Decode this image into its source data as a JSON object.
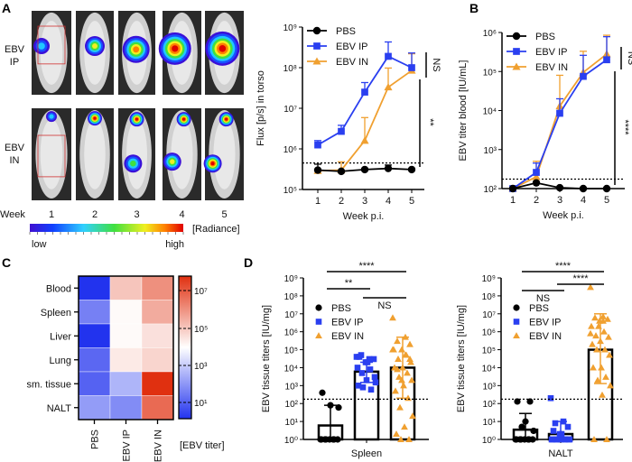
{
  "panel_labels": {
    "a": "A",
    "b": "B",
    "c": "C",
    "d": "D"
  },
  "colors": {
    "PBS": "#000000",
    "EBV IP": "#2a3ff0",
    "EBV IN": "#f0a030",
    "heat_low": "#2233ee",
    "heat_high": "#e03010"
  },
  "imaging": {
    "rows": [
      {
        "line1": "EBV",
        "line2": "IP"
      },
      {
        "line1": "EBV",
        "line2": "IN"
      }
    ],
    "week_label": "Week",
    "weeks": [
      "1",
      "2",
      "3",
      "4",
      "5"
    ],
    "colorbar_label": "[Radiance]",
    "low": "low",
    "high": "high"
  },
  "chart_data": [
    {
      "panel": "A",
      "type": "line",
      "scale": "log",
      "xlabel": "Week p.i.",
      "ylabel": "Flux [p/s] in torso",
      "x": [
        1,
        2,
        3,
        4,
        5
      ],
      "ylim": [
        100000,
        1000000000
      ],
      "ytick_labels": [
        "10⁵",
        "10⁶",
        "10⁷",
        "10⁸",
        "10⁹"
      ],
      "detection_limit": 450000,
      "series": [
        {
          "name": "PBS",
          "values": [
            300000,
            280000,
            310000,
            330000,
            310000
          ],
          "error_upper": [
            420000,
            290000,
            330000,
            400000,
            330000
          ]
        },
        {
          "name": "EBV IP",
          "values": [
            1250000,
            2700000,
            25000000,
            190000000,
            100000000
          ],
          "error_upper": [
            1600000,
            3800000,
            43000000,
            430000000,
            230000000
          ]
        },
        {
          "name": "EBV IN",
          "values": [
            290000,
            300000,
            1600000,
            33000000,
            85000000
          ],
          "error_upper": [
            310000,
            480000,
            5900000,
            98000000,
            220000000
          ]
        }
      ],
      "annotations": [
        {
          "label": "NS",
          "between": [
            "EBV IP",
            "EBV IN"
          ]
        },
        {
          "label": "**",
          "between": [
            "EBV IN",
            "PBS"
          ]
        }
      ]
    },
    {
      "panel": "B",
      "type": "line",
      "scale": "log",
      "xlabel": "Week p.i.",
      "ylabel": "EBV titer blood [IU/mL]",
      "x": [
        1,
        2,
        3,
        4,
        5
      ],
      "ylim": [
        100,
        1000000
      ],
      "ytick_labels": [
        "10²",
        "10³",
        "10⁴",
        "10⁵",
        "10⁶"
      ],
      "detection_limit": 175,
      "series": [
        {
          "name": "PBS",
          "values": [
            100,
            140,
            105,
            100,
            100
          ],
          "error_upper": [
            100,
            150,
            105,
            100,
            100
          ]
        },
        {
          "name": "EBV IP",
          "values": [
            100,
            260,
            8500,
            75000,
            200000
          ],
          "error_upper": [
            100,
            450,
            20000,
            260000,
            780000
          ]
        },
        {
          "name": "EBV IN",
          "values": [
            100,
            200,
            13000,
            95000,
            280000
          ],
          "error_upper": [
            100,
            500,
            80000,
            330000,
            850000
          ]
        }
      ],
      "annotations": [
        {
          "label": "NS",
          "between": [
            "EBV IP",
            "EBV IN"
          ]
        },
        {
          "label": "****",
          "between": [
            "EBV IN",
            "PBS"
          ]
        }
      ]
    },
    {
      "panel": "C",
      "type": "heatmap",
      "scale": "log",
      "rows": [
        "Blood",
        "Spleen",
        "Liver",
        "Lung",
        "sm. tissue",
        "NALT"
      ],
      "columns": [
        "PBS",
        "EBV IP",
        "EBV IN"
      ],
      "values": [
        [
          1,
          100000,
          1000000
        ],
        [
          30,
          10000,
          300000
        ],
        [
          1,
          10000,
          30000
        ],
        [
          10,
          20000,
          50000
        ],
        [
          8,
          300,
          100000000
        ],
        [
          100,
          50,
          5000000
        ]
      ],
      "colorbar_ticks": [
        "10⁷",
        "10⁵",
        "10³",
        "10¹"
      ],
      "colorbar_label": "[EBV titer]"
    },
    {
      "panel": "D",
      "type": "bar+scatter",
      "scale": "log",
      "xlabel": "Spleen",
      "ylabel": "EBV tissue titers [IU/mg]",
      "ylim": [
        1,
        1000000000
      ],
      "ytick_labels": [
        "10⁰",
        "10¹",
        "10²",
        "10³",
        "10⁴",
        "10⁵",
        "10⁶",
        "10⁷",
        "10⁸",
        "10⁹"
      ],
      "detection_limit": 175,
      "categories": [
        "PBS",
        "EBV IP",
        "EBV IN"
      ],
      "bars": [
        6,
        6000,
        10000
      ],
      "error_low": [
        1,
        1500,
        200
      ],
      "error_high": [
        80,
        20000,
        500000
      ],
      "points": [
        [
          1,
          1,
          1,
          1,
          1,
          1,
          1,
          1,
          60,
          80,
          400
        ],
        [
          40000,
          30000,
          50000,
          30000,
          20000,
          10000,
          8000,
          5000,
          3000,
          2000,
          1000,
          600,
          800,
          1500,
          20000,
          40000
        ],
        [
          6000000,
          500000,
          300000,
          200000,
          100000,
          100000,
          50000,
          30000,
          20000,
          10000,
          10000,
          5000,
          3000,
          2000,
          1000,
          500,
          200,
          60,
          20,
          5,
          2,
          1,
          1,
          100000,
          50000,
          8000,
          30000,
          2000
        ]
      ],
      "legend": [
        "PBS",
        "EBV IP",
        "EBV IN"
      ],
      "annotations": [
        {
          "from": 0,
          "to": 2,
          "label": "****"
        },
        {
          "from": 0,
          "to": 1,
          "label": "**"
        },
        {
          "from": 1,
          "to": 2,
          "label": "NS"
        }
      ]
    },
    {
      "panel": "D",
      "type": "bar+scatter",
      "scale": "log",
      "xlabel": "NALT",
      "ylabel": "EBV tissue titers [IU/mg]",
      "ylim": [
        1,
        1000000000
      ],
      "ytick_labels": [
        "10⁰",
        "10¹",
        "10²",
        "10³",
        "10⁴",
        "10⁵",
        "10⁶",
        "10⁷",
        "10⁸",
        "10⁹"
      ],
      "detection_limit": 175,
      "categories": [
        "PBS",
        "EBV IP",
        "EBV IN"
      ],
      "bars": [
        3.5,
        2,
        100000
      ],
      "error_low": [
        1,
        1,
        1300
      ],
      "error_high": [
        28,
        10,
        10000000
      ],
      "points": [
        [
          1,
          1,
          1,
          1,
          1,
          1,
          1,
          1,
          3,
          10,
          130,
          130,
          5
        ],
        [
          200,
          10,
          8,
          5,
          2,
          1,
          1,
          1,
          1,
          1,
          1,
          1,
          1,
          1,
          2,
          3
        ],
        [
          300000000,
          7000000,
          6000000,
          5000000,
          4000000,
          2000000,
          1000000,
          600000,
          500000,
          300000,
          200000,
          100000,
          100000,
          50000,
          10000,
          10000,
          3000,
          2000,
          1000,
          300,
          1,
          1,
          2000000,
          800000,
          4000000
        ]
      ],
      "legend": [
        "PBS",
        "EBV IP",
        "EBV IN"
      ],
      "annotations": [
        {
          "from": 0,
          "to": 2,
          "label": "****"
        },
        {
          "from": 1,
          "to": 2,
          "label": "****"
        },
        {
          "from": 0,
          "to": 1,
          "label": "NS"
        }
      ]
    }
  ]
}
